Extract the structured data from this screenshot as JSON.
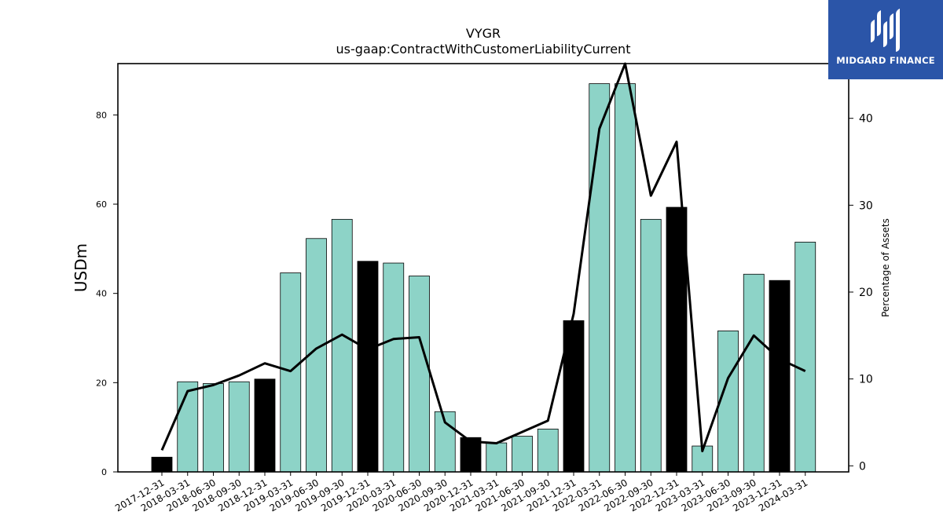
{
  "chart_data": {
    "type": "bar",
    "title": "VYGR",
    "subtitle": "us-gaap:ContractWithCustomerLiabilityCurrent",
    "ylabel": "USDm",
    "y2label": "Percentage of Assets",
    "ylim": [
      0,
      91.5
    ],
    "y2lim": [
      -0.7,
      46.3
    ],
    "yticks": [
      0,
      20,
      40,
      60,
      80
    ],
    "y2ticks": [
      0,
      10,
      20,
      30,
      40
    ],
    "categories": [
      "2017-12-31",
      "2018-03-31",
      "2018-06-30",
      "2018-09-30",
      "2018-12-31",
      "2019-03-31",
      "2019-06-30",
      "2019-09-30",
      "2019-12-31",
      "2020-03-31",
      "2020-06-30",
      "2020-09-30",
      "2020-12-31",
      "2021-03-31",
      "2021-06-30",
      "2021-09-30",
      "2021-12-31",
      "2022-03-31",
      "2022-06-30",
      "2022-09-30",
      "2022-12-31",
      "2023-03-31",
      "2023-06-30",
      "2023-09-30",
      "2023-12-31",
      "2024-03-31"
    ],
    "series": [
      {
        "axis": "left",
        "kind": "bar",
        "values": [
          3.3,
          20.2,
          19.8,
          20.2,
          20.8,
          44.6,
          52.3,
          56.6,
          47.2,
          46.8,
          43.9,
          13.5,
          7.7,
          6.5,
          8.0,
          9.6,
          33.9,
          87.0,
          87.0,
          56.6,
          59.3,
          5.8,
          31.6,
          44.3,
          42.9,
          51.5
        ],
        "annual_flags": [
          true,
          false,
          false,
          false,
          true,
          false,
          false,
          false,
          true,
          false,
          false,
          false,
          true,
          false,
          false,
          false,
          true,
          false,
          false,
          false,
          true,
          false,
          false,
          false,
          true,
          false
        ]
      },
      {
        "axis": "right",
        "kind": "line",
        "values": [
          1.8,
          8.6,
          9.3,
          10.4,
          11.8,
          10.9,
          13.5,
          15.1,
          13.4,
          14.6,
          14.8,
          5.0,
          2.8,
          2.6,
          3.9,
          5.2,
          17.5,
          38.8,
          46.3,
          31.1,
          37.3,
          1.7,
          10.1,
          15.0,
          12.3,
          10.9
        ]
      }
    ],
    "colors": {
      "quarterly_bar": "#8dd3c7",
      "annual_bar": "#000000",
      "line": "#000000",
      "bar_edge": "#000000"
    },
    "grid": false,
    "legend": "none"
  },
  "logo": {
    "text": "MIDGARD FINANCE",
    "background": "#2b55a8",
    "icon": "midgard-m-icon"
  }
}
